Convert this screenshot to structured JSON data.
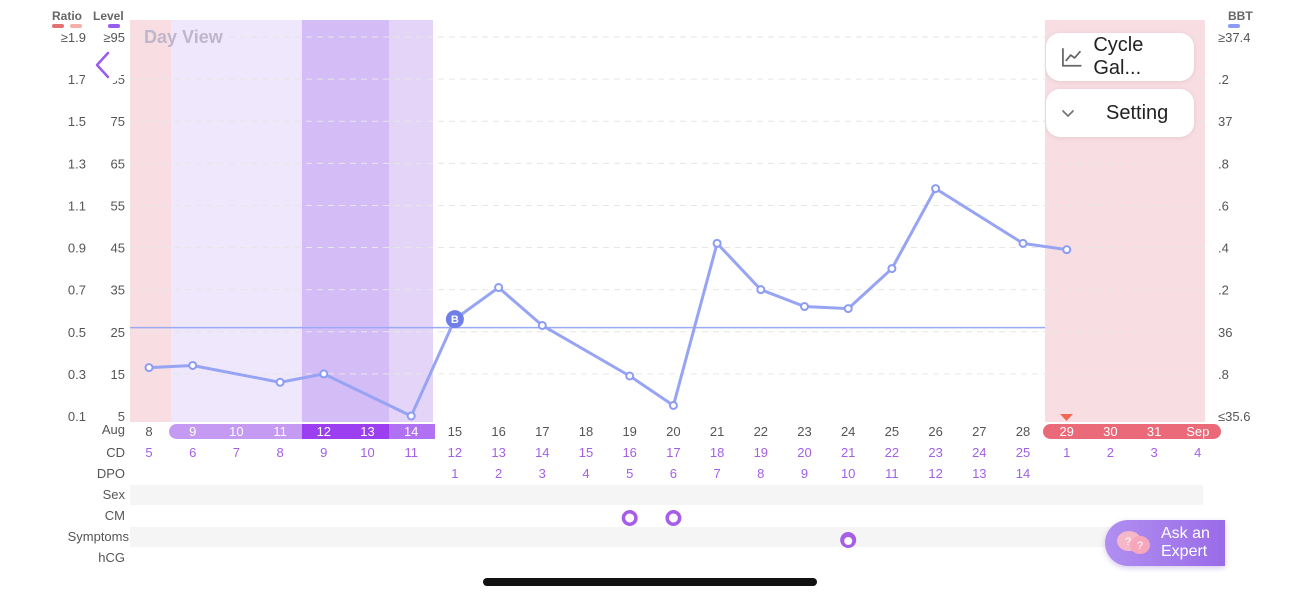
{
  "header": {
    "view_title": "Day View",
    "ratio_label": "Ratio",
    "level_label": "Level",
    "bbt_label": "BBT",
    "ratio_color": "#e0736f",
    "ratio_color_2": "#f4b0a8",
    "level_color": "#9a5cf0",
    "bbt_color": "#8c9cf5"
  },
  "controls": {
    "cycle_button_label": "Cycle Gal...",
    "setting_button_label": "Setting",
    "back_icon": "chevron-left-icon",
    "ask_expert_line1": "Ask an",
    "ask_expert_line2": "Expert"
  },
  "axes": {
    "ratio_ticks": [
      "≥1.9",
      "1.7",
      "1.5",
      "1.3",
      "1.1",
      "0.9",
      "0.7",
      "0.5",
      "0.3",
      "0.1"
    ],
    "level_ticks": [
      "≥95",
      "85",
      "75",
      "65",
      "55",
      "45",
      "35",
      "25",
      "15",
      "5"
    ],
    "bbt_ticks": [
      "≥37.4",
      ".2",
      "37",
      ".8",
      ".6",
      ".4",
      ".2",
      "36",
      ".8",
      "≤35.6"
    ]
  },
  "row_labels": {
    "month": "Aug",
    "cd": "CD",
    "dpo": "DPO",
    "sex": "Sex",
    "cm": "CM",
    "symptoms": "Symptoms",
    "hcg": "hCG"
  },
  "days": [
    "8",
    "9",
    "10",
    "11",
    "12",
    "13",
    "14",
    "15",
    "16",
    "17",
    "18",
    "19",
    "20",
    "21",
    "22",
    "23",
    "24",
    "25",
    "26",
    "27",
    "28",
    "29",
    "30",
    "31",
    "Sep"
  ],
  "cd": [
    "5",
    "6",
    "7",
    "8",
    "9",
    "10",
    "11",
    "12",
    "13",
    "14",
    "15",
    "16",
    "17",
    "18",
    "19",
    "20",
    "21",
    "22",
    "23",
    "24",
    "25",
    "1",
    "2",
    "3",
    "4"
  ],
  "dpo": [
    "",
    "",
    "",
    "",
    "",
    "",
    "",
    "1",
    "2",
    "3",
    "4",
    "5",
    "6",
    "7",
    "8",
    "9",
    "10",
    "11",
    "12",
    "13",
    "14",
    "",
    "",
    "",
    ""
  ],
  "fertile_days": [
    "9",
    "10",
    "11",
    "12",
    "13",
    "14"
  ],
  "period_days": [
    "29",
    "30",
    "31",
    "Sep"
  ],
  "chart_data": {
    "type": "line",
    "x": [
      "Aug 8",
      "Aug 9",
      "Aug 11",
      "Aug 12",
      "Aug 14",
      "Aug 15",
      "Aug 16",
      "Aug 17",
      "Aug 19",
      "Aug 20",
      "Aug 21",
      "Aug 22",
      "Aug 23",
      "Aug 24",
      "Aug 25",
      "Aug 26",
      "Aug 28",
      "Aug 29"
    ],
    "series": [
      {
        "color": "#8c9cf5",
        "values": [
          35.83,
          35.84,
          35.76,
          35.8,
          35.6,
          36.06,
          36.21,
          36.03,
          35.79,
          35.65,
          36.42,
          36.2,
          36.12,
          36.11,
          36.3,
          36.68,
          36.42,
          36.39
        ]
      }
    ],
    "coverline": 36.02,
    "coverline_marker": "B",
    "ylim": [
      35.6,
      37.4
    ]
  },
  "markers": {
    "cm": [
      {
        "day": "19",
        "icon": "cm-sticky-icon"
      },
      {
        "day": "20",
        "icon": "cm-creamy-icon"
      }
    ],
    "symptoms": [
      {
        "day": "24",
        "icon": "symptom-icon"
      }
    ]
  }
}
